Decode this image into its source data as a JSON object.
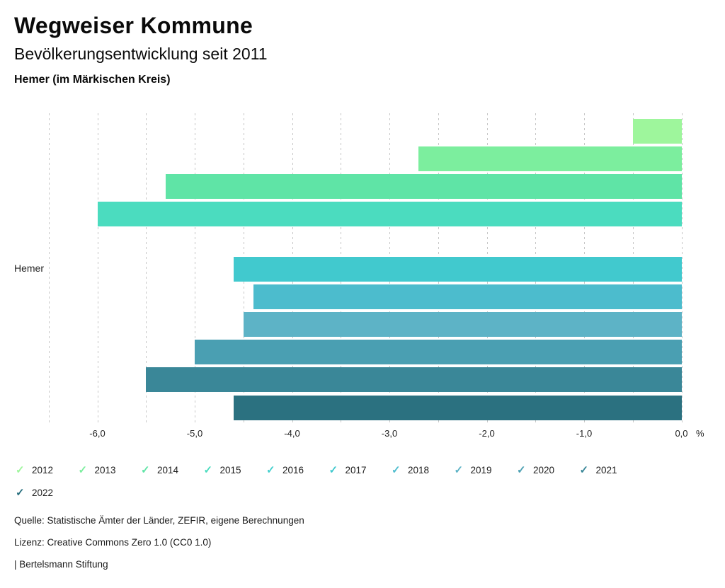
{
  "header": {
    "title": "Wegweiser Kommune",
    "subtitle": "Bevölkerungsentwicklung seit 2011",
    "region": "Hemer (im Märkischen Kreis)"
  },
  "chart_data": {
    "type": "bar",
    "orientation": "horizontal",
    "title": "Bevölkerungsentwicklung seit 2011",
    "group_label": "Hemer",
    "unit": "%",
    "xlim": [
      -6.5,
      0
    ],
    "gridline_step": 0.5,
    "grid": "vertical-dashed",
    "legend_position": "bottom",
    "x_ticks": [
      {
        "value": -6,
        "label": "-6,0"
      },
      {
        "value": -5,
        "label": "-5,0"
      },
      {
        "value": -4,
        "label": "-4,0"
      },
      {
        "value": -3,
        "label": "-3,0"
      },
      {
        "value": -2,
        "label": "-2,0"
      },
      {
        "value": -1,
        "label": "-1,0"
      },
      {
        "value": 0,
        "label": "0,0"
      }
    ],
    "series": [
      {
        "year": "2012",
        "value": -0.5,
        "color": "#9ef69c"
      },
      {
        "year": "2013",
        "value": -2.7,
        "color": "#7cee9e"
      },
      {
        "year": "2014",
        "value": -5.3,
        "color": "#5fe4a6"
      },
      {
        "year": "2015",
        "value": -6.0,
        "color": "#4bdcbf"
      },
      {
        "year": "2016",
        "value": 0.0,
        "color": "#44d0ce"
      },
      {
        "year": "2017",
        "value": -4.6,
        "color": "#41c9ce"
      },
      {
        "year": "2018",
        "value": -4.4,
        "color": "#4cbccd"
      },
      {
        "year": "2019",
        "value": -4.5,
        "color": "#5db3c6"
      },
      {
        "year": "2020",
        "value": -5.0,
        "color": "#4a9fb2"
      },
      {
        "year": "2021",
        "value": -5.5,
        "color": "#3a8798"
      },
      {
        "year": "2022",
        "value": -4.6,
        "color": "#2b7180"
      }
    ]
  },
  "legend": {
    "check_glyph": "✓"
  },
  "footer": {
    "source": "Quelle: Statistische Ämter der Länder, ZEFIR, eigene Berechnungen",
    "license": "Lizenz: Creative Commons Zero 1.0 (CC0 1.0)",
    "attribution": "| Bertelsmann Stiftung"
  }
}
